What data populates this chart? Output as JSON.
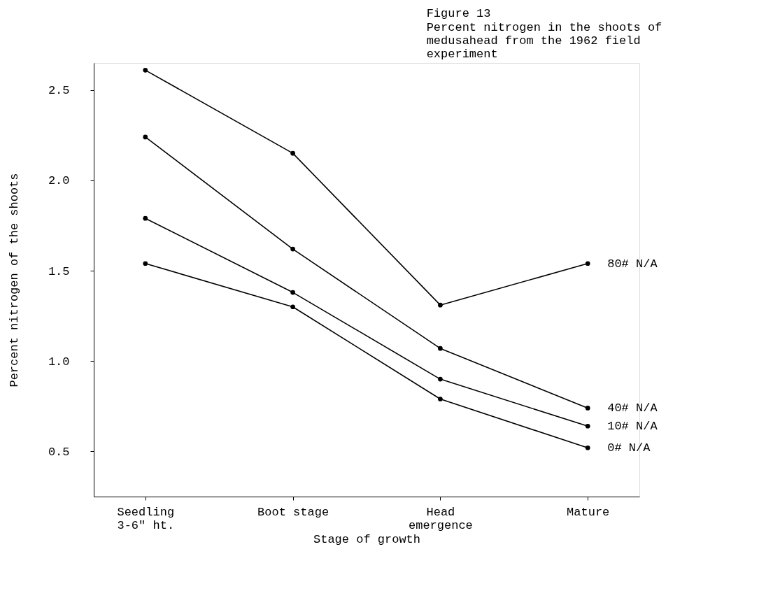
{
  "chart_data": {
    "type": "line",
    "title": "Figure 13",
    "subtitle": "Percent nitrogen in the shoots of\nmedusahead from the 1962 field\nexperiment",
    "xlabel": "Stage of growth",
    "ylabel": "Percent nitrogen of the shoots",
    "categories": [
      "Seedling\n3-6\" ht.",
      "Boot stage",
      "Head\nemergence",
      "Mature"
    ],
    "series": [
      {
        "name": "80# N/A",
        "color": "#000000",
        "values": [
          2.61,
          2.15,
          1.31,
          1.54
        ]
      },
      {
        "name": "40# N/A",
        "color": "#000000",
        "values": [
          2.24,
          1.62,
          1.07,
          0.74
        ]
      },
      {
        "name": "10# N/A",
        "color": "#000000",
        "values": [
          1.79,
          1.38,
          0.9,
          0.64
        ]
      },
      {
        "name": "0# N/A",
        "color": "#000000",
        "values": [
          1.54,
          1.3,
          0.79,
          0.52
        ]
      }
    ],
    "ylim": [
      0.25,
      2.65
    ],
    "yticks": [
      0.5,
      {
        "value": 1,
        "label": "1.0"
      },
      1.5,
      {
        "value": 2,
        "label": "2.0"
      },
      2.5
    ],
    "grid": false,
    "legend": false,
    "marker": "circle",
    "line_style": "solid"
  }
}
